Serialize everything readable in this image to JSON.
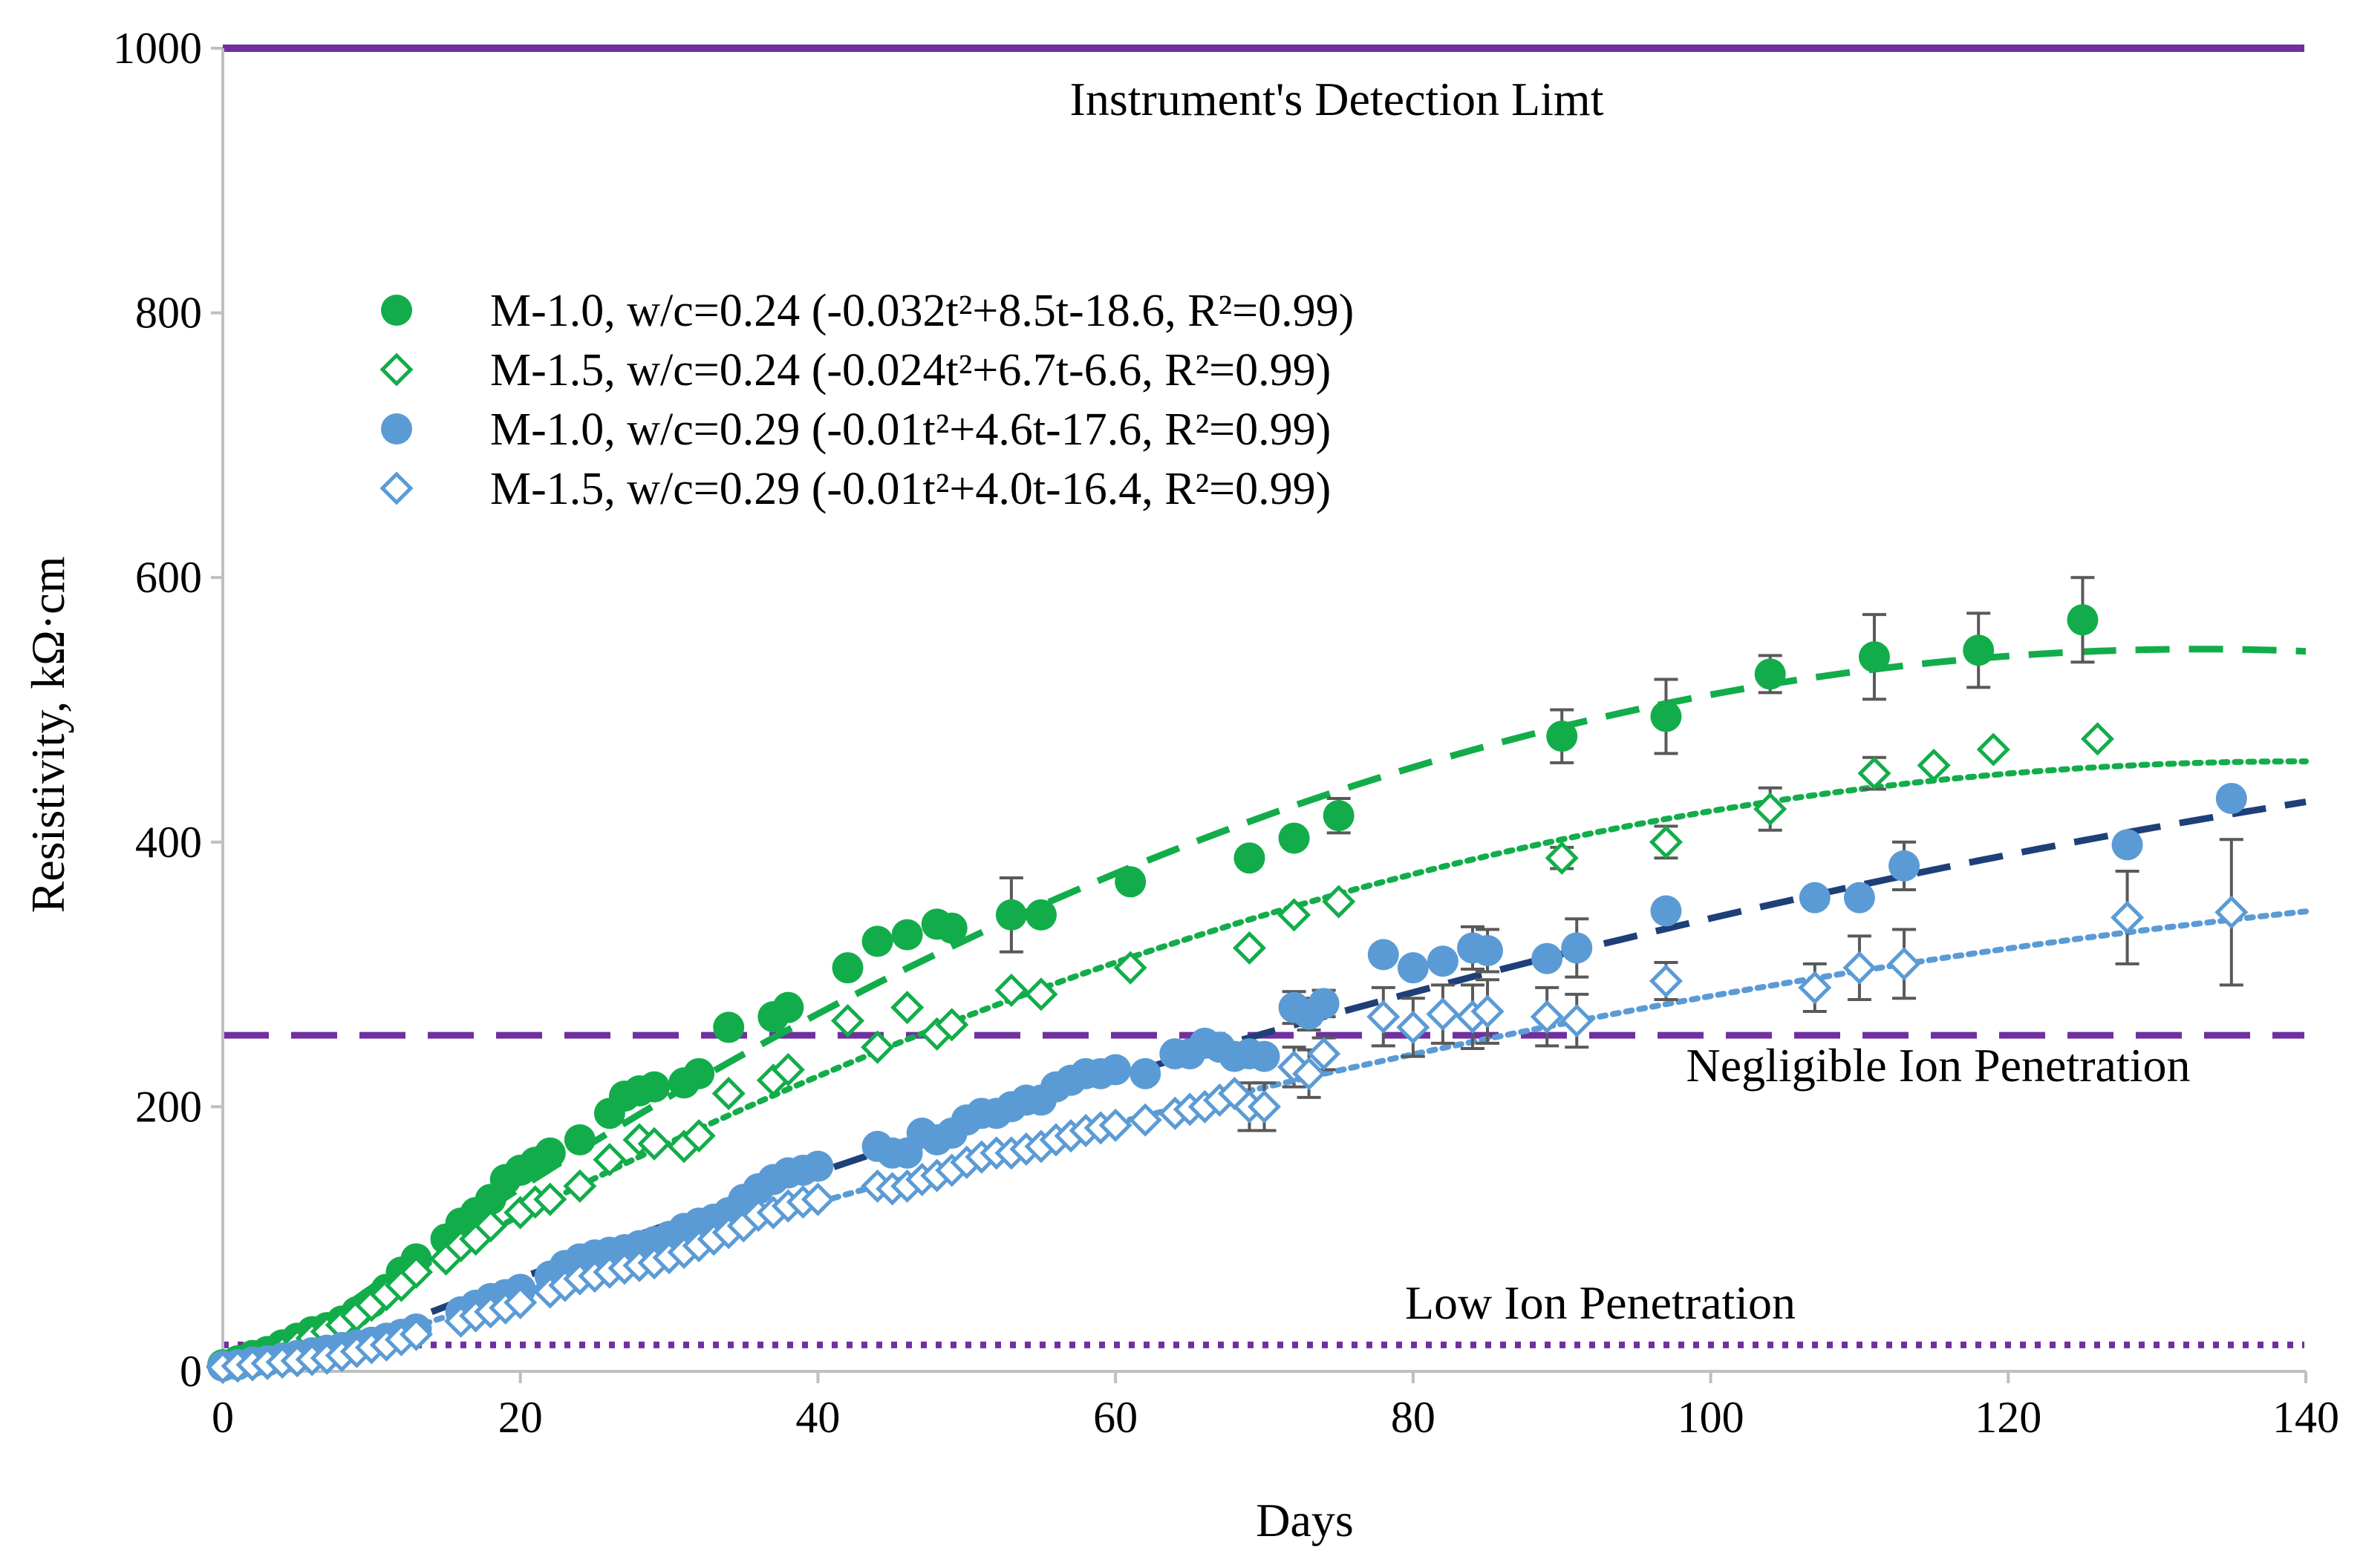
{
  "colors": {
    "green": "#12AD4A",
    "blue": "#5B9BD5",
    "navy": "#1F3F79",
    "purple": "#7030A0",
    "axis": "#BFBFBF",
    "errorbar": "#595959"
  },
  "chart_data": {
    "type": "scatter",
    "xlabel": "Days",
    "ylabel": "Resistivity, kΩ·cm",
    "xlim": [
      0,
      140
    ],
    "ylim": [
      0,
      1000
    ],
    "xticks": [
      0,
      20,
      40,
      60,
      80,
      100,
      120,
      140
    ],
    "yticks": [
      0,
      200,
      400,
      600,
      800,
      1000
    ],
    "legend_position": "upper-left",
    "reference_lines": [
      {
        "name": "detection-limit",
        "value": 1000,
        "style": "solid",
        "label": "Instrument's Detection Limt"
      },
      {
        "name": "negligible",
        "value": 254,
        "style": "dashed",
        "label": "Negligible Ion Penetration"
      },
      {
        "name": "low",
        "value": 20,
        "style": "dotted",
        "label": "Low Ion Penetration"
      }
    ],
    "series": [
      {
        "name": "M-1.0, w/c=0.24 (-0.032t²+8.5t-18.6, R²=0.99)",
        "marker": "filled-circle",
        "color": "green",
        "trendline": {
          "a": -0.032,
          "b": 8.5,
          "c": -18.6,
          "style": "dashed",
          "color": "green"
        },
        "x": [
          0,
          1,
          2,
          3,
          4,
          5,
          6,
          7,
          8,
          9,
          10,
          11,
          12,
          13,
          15,
          16,
          17,
          18,
          19,
          20,
          21,
          22,
          24,
          26,
          27,
          28,
          29,
          31,
          32,
          34,
          37,
          38,
          42,
          44,
          46,
          48,
          49,
          53,
          55,
          61,
          69,
          72,
          75,
          90,
          97,
          104,
          111,
          118,
          125
        ],
        "y": [
          5,
          8,
          12,
          15,
          20,
          25,
          30,
          33,
          38,
          45,
          52,
          62,
          75,
          85,
          100,
          112,
          120,
          130,
          145,
          152,
          158,
          165,
          175,
          195,
          208,
          212,
          215,
          218,
          225,
          260,
          268,
          275,
          305,
          325,
          330,
          338,
          335,
          345,
          345,
          370,
          388,
          403,
          420,
          480,
          495,
          527,
          540,
          545,
          568
        ],
        "error": [
          0,
          0,
          0,
          0,
          0,
          0,
          0,
          0,
          0,
          0,
          0,
          0,
          0,
          0,
          0,
          0,
          0,
          0,
          0,
          0,
          0,
          0,
          0,
          0,
          0,
          0,
          0,
          0,
          0,
          0,
          0,
          0,
          0,
          0,
          0,
          0,
          0,
          28,
          0,
          0,
          0,
          0,
          13,
          20,
          28,
          14,
          32,
          28,
          32
        ]
      },
      {
        "name": "M-1.5, w/c=0.24 (-0.024t²+6.7t-6.6, R²=0.99)",
        "marker": "open-diamond",
        "color": "green",
        "trendline": {
          "a": -0.024,
          "b": 6.7,
          "c": -6.6,
          "style": "dotted",
          "color": "green"
        },
        "x": [
          0,
          1,
          2,
          3,
          4,
          5,
          6,
          7,
          8,
          9,
          10,
          11,
          12,
          13,
          15,
          16,
          17,
          18,
          20,
          21,
          22,
          24,
          26,
          28,
          29,
          31,
          32,
          34,
          37,
          38,
          42,
          44,
          46,
          48,
          49,
          53,
          55,
          61,
          69,
          72,
          75,
          90,
          97,
          104,
          111,
          115,
          119,
          126
        ],
        "y": [
          4,
          6,
          8,
          11,
          15,
          20,
          25,
          30,
          35,
          42,
          50,
          58,
          65,
          75,
          85,
          95,
          100,
          110,
          120,
          128,
          130,
          140,
          160,
          175,
          172,
          170,
          178,
          210,
          220,
          228,
          265,
          245,
          275,
          255,
          262,
          288,
          285,
          305,
          320,
          345,
          355,
          388,
          400,
          425,
          452,
          458,
          470,
          478
        ],
        "error": [
          0,
          0,
          0,
          0,
          0,
          0,
          0,
          0,
          0,
          0,
          0,
          0,
          0,
          0,
          0,
          0,
          0,
          0,
          0,
          0,
          0,
          0,
          0,
          0,
          0,
          0,
          0,
          0,
          0,
          0,
          0,
          0,
          0,
          0,
          0,
          0,
          0,
          0,
          0,
          0,
          0,
          8,
          12,
          16,
          12,
          0,
          0,
          0
        ]
      },
      {
        "name": "M-1.0, w/c=0.29 (-0.01t²+4.6t-17.6, R²=0.99)",
        "marker": "filled-circle",
        "color": "blue",
        "trendline": {
          "a": -0.01,
          "b": 4.6,
          "c": -17.6,
          "style": "dashed",
          "color": "navy"
        },
        "x": [
          0,
          1,
          2,
          3,
          4,
          5,
          6,
          7,
          8,
          9,
          10,
          11,
          12,
          13,
          16,
          17,
          18,
          19,
          20,
          22,
          23,
          24,
          25,
          26,
          27,
          28,
          29,
          30,
          31,
          32,
          33,
          34,
          35,
          36,
          37,
          38,
          39,
          40,
          44,
          45,
          46,
          47,
          48,
          49,
          50,
          51,
          52,
          53,
          54,
          55,
          56,
          57,
          58,
          59,
          60,
          62,
          64,
          65,
          66,
          67,
          68,
          69,
          70,
          72,
          73,
          74,
          78,
          80,
          82,
          84,
          85,
          89,
          91,
          97,
          107,
          110,
          113,
          128,
          135
        ],
        "y": [
          4,
          5,
          7,
          8,
          10,
          12,
          14,
          16,
          18,
          20,
          22,
          25,
          28,
          32,
          45,
          50,
          55,
          58,
          62,
          72,
          80,
          85,
          88,
          90,
          92,
          95,
          98,
          102,
          108,
          112,
          115,
          120,
          130,
          138,
          145,
          150,
          152,
          155,
          170,
          165,
          165,
          180,
          175,
          180,
          190,
          195,
          195,
          200,
          205,
          205,
          215,
          220,
          225,
          225,
          228,
          225,
          240,
          240,
          248,
          245,
          238,
          240,
          238,
          275,
          270,
          278,
          315,
          305,
          310,
          320,
          318,
          312,
          320,
          348,
          358,
          358,
          382,
          398,
          433
        ],
        "error": [
          0,
          0,
          0,
          0,
          0,
          0,
          0,
          0,
          0,
          0,
          0,
          0,
          0,
          0,
          0,
          0,
          0,
          0,
          0,
          0,
          0,
          0,
          0,
          0,
          0,
          0,
          0,
          0,
          0,
          0,
          0,
          0,
          0,
          0,
          0,
          0,
          0,
          0,
          0,
          0,
          0,
          0,
          0,
          0,
          0,
          0,
          0,
          0,
          0,
          0,
          0,
          0,
          0,
          0,
          0,
          0,
          0,
          0,
          0,
          0,
          0,
          0,
          0,
          12,
          12,
          10,
          0,
          0,
          0,
          16,
          16,
          0,
          22,
          0,
          0,
          0,
          18,
          0,
          0
        ]
      },
      {
        "name": "M-1.5, w/c=0.29 (-0.01t²+4.0t-16.4, R²=0.99)",
        "marker": "open-diamond",
        "color": "blue",
        "trendline": {
          "a": -0.01,
          "b": 4.0,
          "c": -16.4,
          "style": "dotted",
          "color": "blue"
        },
        "x": [
          0,
          1,
          2,
          3,
          4,
          5,
          6,
          7,
          8,
          9,
          10,
          11,
          12,
          13,
          16,
          17,
          18,
          19,
          20,
          22,
          23,
          24,
          25,
          26,
          27,
          28,
          29,
          30,
          31,
          32,
          33,
          34,
          35,
          36,
          37,
          38,
          39,
          40,
          44,
          45,
          46,
          47,
          48,
          49,
          50,
          51,
          52,
          53,
          54,
          55,
          56,
          57,
          58,
          59,
          60,
          62,
          64,
          65,
          66,
          67,
          68,
          69,
          70,
          72,
          73,
          74,
          78,
          80,
          82,
          84,
          85,
          89,
          91,
          97,
          107,
          110,
          113,
          128,
          135
        ],
        "y": [
          3,
          4,
          5,
          6,
          7,
          8,
          9,
          10,
          12,
          15,
          18,
          20,
          24,
          28,
          38,
          42,
          45,
          48,
          52,
          60,
          65,
          70,
          72,
          75,
          78,
          80,
          82,
          86,
          90,
          95,
          100,
          105,
          110,
          118,
          120,
          125,
          128,
          130,
          140,
          138,
          140,
          145,
          148,
          152,
          158,
          162,
          165,
          165,
          168,
          170,
          175,
          178,
          182,
          184,
          186,
          190,
          195,
          198,
          200,
          205,
          210,
          200,
          200,
          230,
          225,
          240,
          268,
          260,
          270,
          268,
          272,
          268,
          265,
          295,
          290,
          305,
          308,
          343,
          347
        ],
        "error": [
          0,
          0,
          0,
          0,
          0,
          0,
          0,
          0,
          0,
          0,
          0,
          0,
          0,
          0,
          0,
          0,
          0,
          0,
          0,
          0,
          0,
          0,
          0,
          0,
          0,
          0,
          0,
          0,
          0,
          0,
          0,
          0,
          0,
          0,
          0,
          0,
          0,
          0,
          0,
          0,
          0,
          0,
          0,
          0,
          0,
          0,
          0,
          0,
          0,
          0,
          0,
          0,
          0,
          0,
          0,
          0,
          0,
          0,
          0,
          0,
          0,
          18,
          18,
          15,
          18,
          12,
          22,
          22,
          22,
          24,
          24,
          22,
          20,
          14,
          18,
          24,
          26,
          35,
          55
        ]
      }
    ]
  }
}
